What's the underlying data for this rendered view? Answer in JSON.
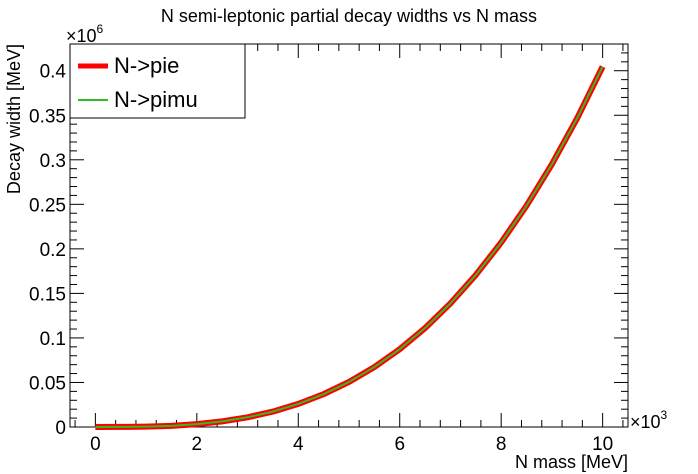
{
  "chart_data": {
    "type": "line",
    "title": "N semi-leptonic partial decay widths vs N mass",
    "xlabel": "N mass [MeV]",
    "ylabel": "Decay width [MeV]",
    "x_multiplier": "×10",
    "x_multiplier_exp": "3",
    "y_multiplier": "×10",
    "y_multiplier_exp": "6",
    "xlim": [
      -0.5,
      10.5
    ],
    "ylim": [
      0,
      0.43
    ],
    "x_ticks": [
      0,
      2,
      4,
      6,
      8,
      10
    ],
    "x_tick_labels": [
      "0",
      "2",
      "4",
      "6",
      "8",
      "10"
    ],
    "y_ticks": [
      0,
      0.05,
      0.1,
      0.15,
      0.2,
      0.25,
      0.3,
      0.35,
      0.4
    ],
    "y_tick_labels": [
      "0",
      "0.05",
      "0.1",
      "0.15",
      "0.2",
      "0.25",
      "0.3",
      "0.35",
      "0.4"
    ],
    "legend_position": "top-left",
    "series": [
      {
        "name": "N->pie",
        "color": "#ff0000",
        "x": [
          0,
          0.5,
          1,
          1.5,
          2,
          2.5,
          3,
          3.5,
          4,
          4.5,
          5,
          5.5,
          6,
          6.5,
          7,
          7.5,
          8,
          8.5,
          9,
          9.5,
          10
        ],
        "y": [
          0,
          0.0001,
          0.0004,
          0.0012,
          0.0032,
          0.0063,
          0.0109,
          0.0173,
          0.0259,
          0.0369,
          0.0506,
          0.0673,
          0.0874,
          0.1111,
          0.1388,
          0.1707,
          0.2072,
          0.2485,
          0.295,
          0.3469,
          0.4046
        ]
      },
      {
        "name": "N->pimu",
        "color": "#33bb22",
        "x": [
          0,
          0.5,
          1,
          1.5,
          2,
          2.5,
          3,
          3.5,
          4,
          4.5,
          5,
          5.5,
          6,
          6.5,
          7,
          7.5,
          8,
          8.5,
          9,
          9.5,
          10
        ],
        "y": [
          0,
          0.0001,
          0.0004,
          0.0012,
          0.0032,
          0.0063,
          0.0109,
          0.0173,
          0.0259,
          0.0369,
          0.0506,
          0.0673,
          0.0874,
          0.1111,
          0.1388,
          0.1707,
          0.2072,
          0.2485,
          0.295,
          0.3469,
          0.4046
        ]
      }
    ]
  }
}
